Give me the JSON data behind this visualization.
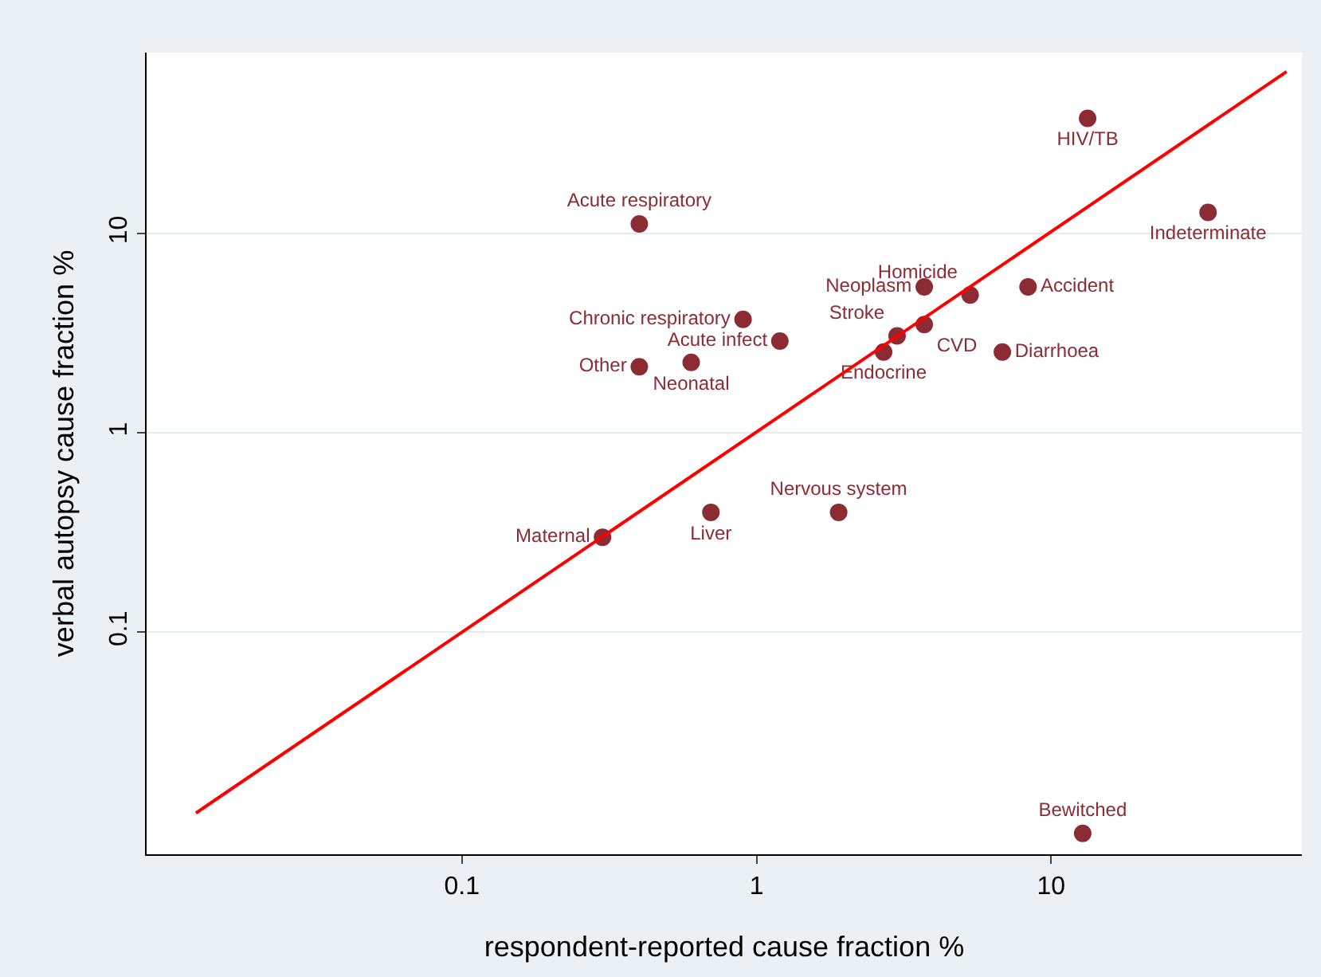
{
  "chart_data": {
    "type": "scatter",
    "xlabel": "respondent-reported cause fraction %",
    "ylabel": "verbal autopsy cause fraction %",
    "log": "xy",
    "xlim": [
      0.0085,
      71
    ],
    "ylim": [
      0.0077,
      81
    ],
    "xticks": [
      0.1,
      1,
      10
    ],
    "yticks": [
      0.1,
      1,
      10
    ],
    "grid": "y",
    "legend": false,
    "marker": "circle",
    "series": [
      {
        "name": "HIV/TB",
        "color": "#8b2c35",
        "x": [
          13.3
        ],
        "values": [
          37.9
        ]
      },
      {
        "name": "Acute respiratory",
        "color": "#8b2c35",
        "x": [
          0.4
        ],
        "values": [
          11.2
        ]
      },
      {
        "name": "Indeterminate",
        "color": "#8b2c35",
        "x": [
          34.1
        ],
        "values": [
          12.8
        ]
      },
      {
        "name": "Neoplasm",
        "color": "#8b2c35",
        "x": [
          3.71
        ],
        "values": [
          5.41
        ]
      },
      {
        "name": "Homicide",
        "color": "#8b2c35",
        "x": [
          5.31
        ],
        "values": [
          4.92
        ]
      },
      {
        "name": "Accident",
        "color": "#8b2c35",
        "x": [
          8.35
        ],
        "values": [
          5.41
        ]
      },
      {
        "name": "Chronic respiratory",
        "color": "#8b2c35",
        "x": [
          0.9
        ],
        "values": [
          3.72
        ]
      },
      {
        "name": "Acute infect",
        "color": "#8b2c35",
        "x": [
          1.2
        ],
        "values": [
          2.89
        ]
      },
      {
        "name": "Stroke",
        "color": "#8b2c35",
        "x": [
          3.0
        ],
        "values": [
          3.07
        ]
      },
      {
        "name": "CVD",
        "color": "#8b2c35",
        "x": [
          3.71
        ],
        "values": [
          3.5
        ]
      },
      {
        "name": "Endocrine",
        "color": "#8b2c35",
        "x": [
          2.7
        ],
        "values": [
          2.55
        ]
      },
      {
        "name": "Diarrhoea",
        "color": "#8b2c35",
        "x": [
          6.83
        ],
        "values": [
          2.55
        ]
      },
      {
        "name": "Other",
        "color": "#8b2c35",
        "x": [
          0.4
        ],
        "values": [
          2.15
        ]
      },
      {
        "name": "Neonatal",
        "color": "#8b2c35",
        "x": [
          0.6
        ],
        "values": [
          2.26
        ]
      },
      {
        "name": "Maternal",
        "color": "#8b2c35",
        "x": [
          0.3
        ],
        "values": [
          0.3
        ]
      },
      {
        "name": "Liver",
        "color": "#8b2c35",
        "x": [
          0.7
        ],
        "values": [
          0.4
        ]
      },
      {
        "name": "Nervous system",
        "color": "#8b2c35",
        "x": [
          1.9
        ],
        "values": [
          0.4
        ]
      },
      {
        "name": "Bewitched",
        "color": "#8b2c35",
        "x": [
          12.8
        ],
        "values": [
          0.0098
        ]
      },
      {
        "type": "line",
        "color": "#ff0000",
        "x": [
          0.0125,
          63
        ],
        "values": [
          0.0124,
          65
        ],
        "line_style": "solid",
        "marker": "none"
      }
    ]
  }
}
